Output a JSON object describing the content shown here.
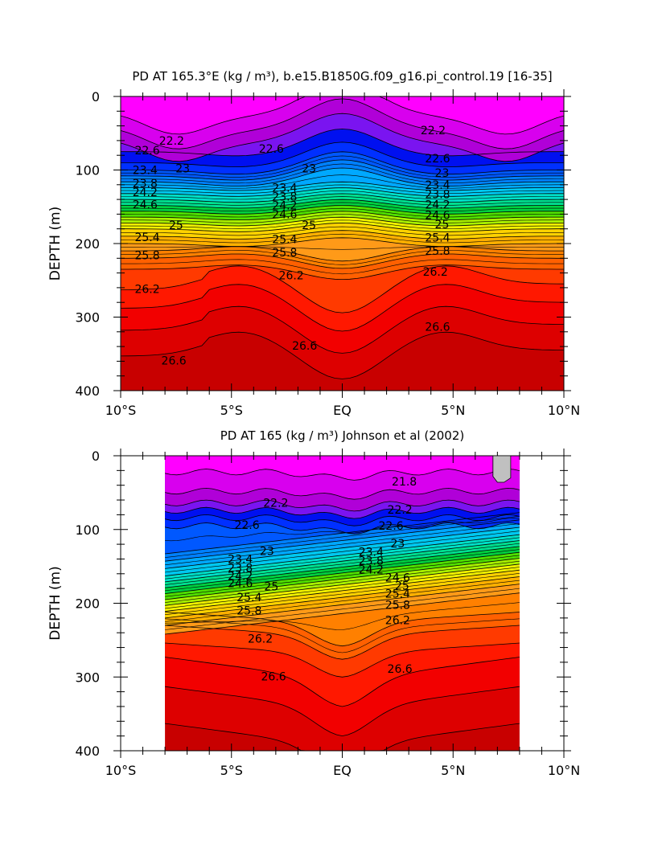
{
  "chart_data": [
    {
      "type": "heatmap",
      "subtype": "filled-contour",
      "title": "PD AT 165.3°E (kg / m³), b.e15.B1850G.f09_g16.pi_control.19 [16-35]",
      "ylabel": "DEPTH (m)",
      "xlabel": "",
      "xticks": [
        "10°S",
        "5°S",
        "EQ",
        "5°N",
        "10°N"
      ],
      "yticks": [
        "0",
        "100",
        "200",
        "300",
        "400"
      ],
      "xlim": [
        -10,
        10
      ],
      "ylim": [
        400,
        0
      ],
      "data_xrange": [
        -10,
        10
      ],
      "contour_step": 0.2,
      "contour_labels": [
        {
          "value": "22.2",
          "x": -7.7,
          "y": 60
        },
        {
          "value": "22.6",
          "x": -8.8,
          "y": 73
        },
        {
          "value": "23",
          "x": -7.2,
          "y": 98
        },
        {
          "value": "23.4",
          "x": -8.9,
          "y": 100
        },
        {
          "value": "23.8",
          "x": -8.9,
          "y": 118
        },
        {
          "value": "24.2",
          "x": -8.9,
          "y": 130
        },
        {
          "value": "24.6",
          "x": -8.9,
          "y": 147
        },
        {
          "value": "25",
          "x": -7.5,
          "y": 175
        },
        {
          "value": "25.4",
          "x": -8.8,
          "y": 191
        },
        {
          "value": "25.8",
          "x": -8.8,
          "y": 216
        },
        {
          "value": "26.2",
          "x": -8.8,
          "y": 262
        },
        {
          "value": "26.6",
          "x": -7.6,
          "y": 359
        },
        {
          "value": "22.6",
          "x": -3.2,
          "y": 71
        },
        {
          "value": "23",
          "x": -1.5,
          "y": 98
        },
        {
          "value": "23.4",
          "x": -2.6,
          "y": 124
        },
        {
          "value": "23.8",
          "x": -2.6,
          "y": 136
        },
        {
          "value": "24.2",
          "x": -2.6,
          "y": 148
        },
        {
          "value": "24.6",
          "x": -2.6,
          "y": 160
        },
        {
          "value": "25",
          "x": -1.5,
          "y": 175
        },
        {
          "value": "25.4",
          "x": -2.6,
          "y": 194
        },
        {
          "value": "25.8",
          "x": -2.6,
          "y": 212
        },
        {
          "value": "26.2",
          "x": -2.3,
          "y": 243
        },
        {
          "value": "26.6",
          "x": -1.7,
          "y": 339
        },
        {
          "value": "22.2",
          "x": 4.1,
          "y": 46
        },
        {
          "value": "22.6",
          "x": 4.3,
          "y": 84
        },
        {
          "value": "23",
          "x": 4.5,
          "y": 104
        },
        {
          "value": "23.4",
          "x": 4.3,
          "y": 120
        },
        {
          "value": "23.8",
          "x": 4.3,
          "y": 133
        },
        {
          "value": "24.2",
          "x": 4.3,
          "y": 147
        },
        {
          "value": "24.6",
          "x": 4.3,
          "y": 161
        },
        {
          "value": "25",
          "x": 4.5,
          "y": 174
        },
        {
          "value": "25.4",
          "x": 4.3,
          "y": 192
        },
        {
          "value": "25.8",
          "x": 4.3,
          "y": 210
        },
        {
          "value": "26.2",
          "x": 4.2,
          "y": 238
        },
        {
          "value": "26.6",
          "x": 4.3,
          "y": 313
        }
      ]
    },
    {
      "type": "heatmap",
      "subtype": "filled-contour",
      "title": "PD AT 165 (kg / m³) Johnson et al (2002)",
      "ylabel": "DEPTH (m)",
      "xlabel": "",
      "xticks": [
        "10°S",
        "5°S",
        "EQ",
        "5°N",
        "10°N"
      ],
      "yticks": [
        "0",
        "100",
        "200",
        "300",
        "400"
      ],
      "xlim": [
        -10,
        10
      ],
      "ylim": [
        400,
        0
      ],
      "data_xrange": [
        -8,
        8
      ],
      "contour_step": 0.2,
      "contour_labels": [
        {
          "value": "22.2",
          "x": -3,
          "y": 64
        },
        {
          "value": "22.6",
          "x": -4.3,
          "y": 94
        },
        {
          "value": "23",
          "x": -3.4,
          "y": 129
        },
        {
          "value": "23.4",
          "x": -4.6,
          "y": 140
        },
        {
          "value": "23.8",
          "x": -4.6,
          "y": 152
        },
        {
          "value": "24.2",
          "x": -4.6,
          "y": 163
        },
        {
          "value": "24.6",
          "x": -4.6,
          "y": 173
        },
        {
          "value": "25",
          "x": -3.2,
          "y": 177
        },
        {
          "value": "25.4",
          "x": -4.2,
          "y": 192
        },
        {
          "value": "25.8",
          "x": -4.2,
          "y": 210
        },
        {
          "value": "26.2",
          "x": -3.7,
          "y": 248
        },
        {
          "value": "26.6",
          "x": -3.1,
          "y": 299
        },
        {
          "value": "21.8",
          "x": 2.8,
          "y": 35
        },
        {
          "value": "22.2",
          "x": 2.6,
          "y": 73
        },
        {
          "value": "22.6",
          "x": 2.2,
          "y": 95
        },
        {
          "value": "23",
          "x": 2.5,
          "y": 119
        },
        {
          "value": "23.4",
          "x": 1.3,
          "y": 130
        },
        {
          "value": "23.8",
          "x": 1.3,
          "y": 142
        },
        {
          "value": "24.2",
          "x": 1.3,
          "y": 154
        },
        {
          "value": "24.6",
          "x": 2.5,
          "y": 165
        },
        {
          "value": "25",
          "x": 2.7,
          "y": 176
        },
        {
          "value": "25.4",
          "x": 2.5,
          "y": 187
        },
        {
          "value": "25.8",
          "x": 2.5,
          "y": 202
        },
        {
          "value": "26.2",
          "x": 2.5,
          "y": 223
        },
        {
          "value": "26.6",
          "x": 2.6,
          "y": 289
        }
      ]
    }
  ]
}
